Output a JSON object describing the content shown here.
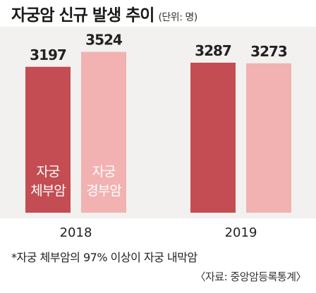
{
  "header": {
    "title": "자궁암 신규 발생 추이",
    "unit": "(단위: 명)"
  },
  "colors": {
    "panel_bg": "#f3f1ef",
    "series_1": "#c34d52",
    "series_2": "#f1b2b1",
    "text": "#222222",
    "bar_label_text": "#ffffff"
  },
  "chart_data": {
    "type": "bar",
    "title": "자궁암 신규 발생 추이",
    "unit": "(단위: 명)",
    "categories": [
      "2018",
      "2019"
    ],
    "series": [
      {
        "name": "자궁 체부암",
        "label_lines": [
          "자궁",
          "체부암"
        ],
        "values": [
          3197,
          3287
        ]
      },
      {
        "name": "자궁 경부암",
        "label_lines": [
          "자궁",
          "경부암"
        ],
        "values": [
          3524,
          3273
        ]
      }
    ],
    "legend_placement": "inside-first-group-bars",
    "grid": false
  },
  "footnote": "*자궁 체부암의 97% 이상이 자궁 내막암",
  "source": "〈자료: 중앙암등록통계〉"
}
